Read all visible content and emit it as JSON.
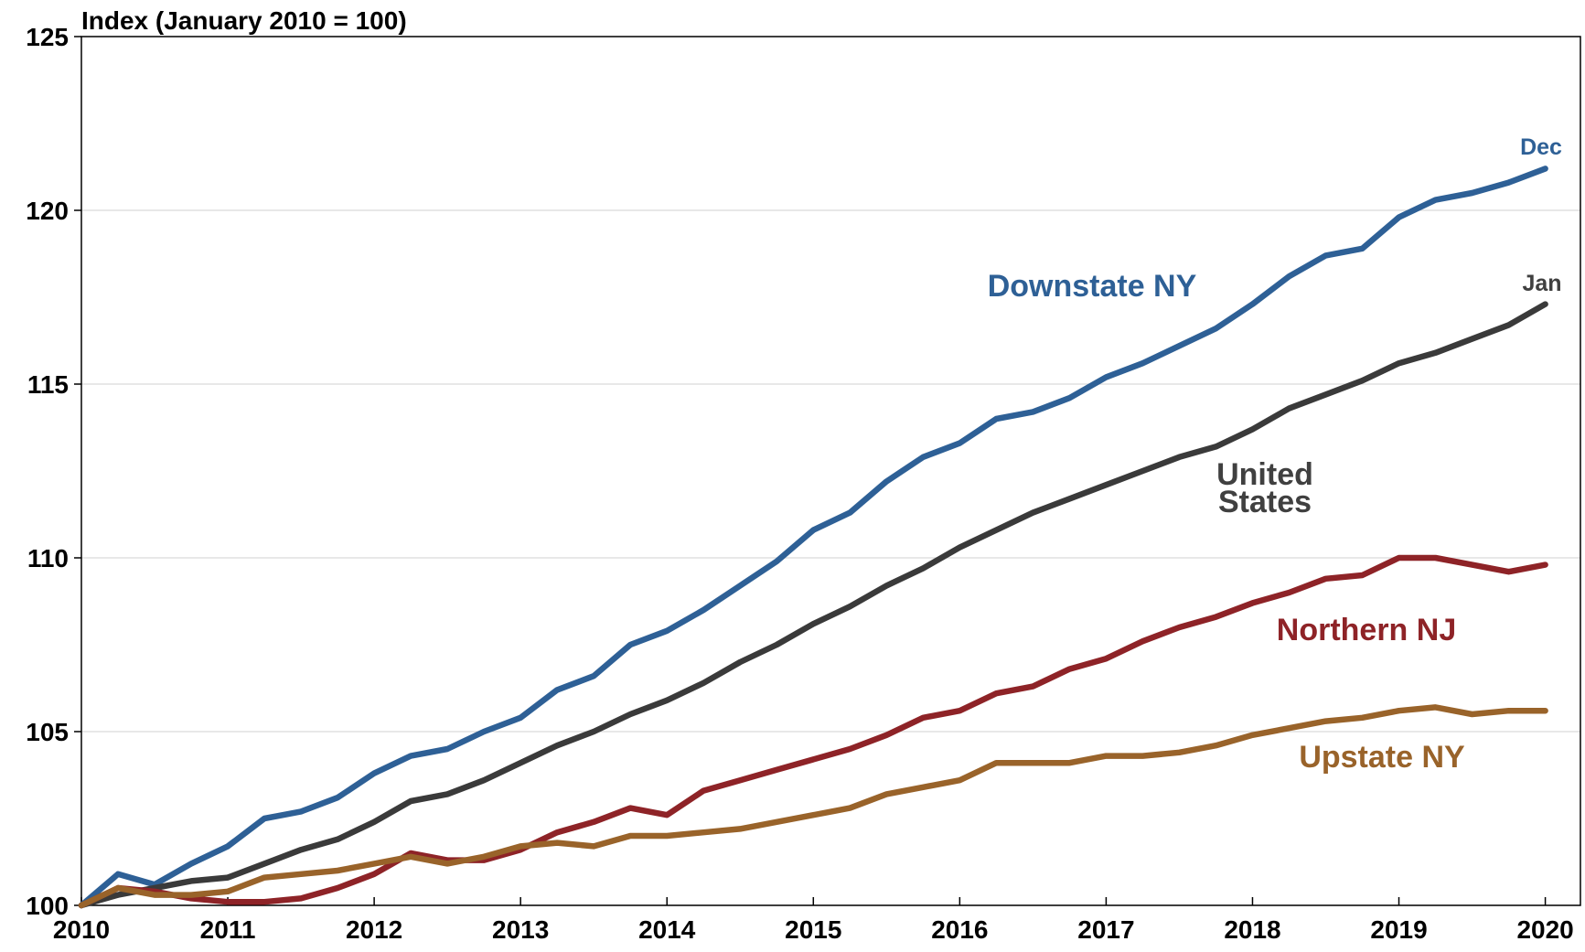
{
  "chart_data": {
    "type": "line",
    "title": "Index (January 2010 = 100)",
    "x": [
      2010,
      2010.25,
      2010.5,
      2010.75,
      2011,
      2011.25,
      2011.5,
      2011.75,
      2012,
      2012.25,
      2012.5,
      2012.75,
      2013,
      2013.25,
      2013.5,
      2013.75,
      2014,
      2014.25,
      2014.5,
      2014.75,
      2015,
      2015.25,
      2015.5,
      2015.75,
      2016,
      2016.25,
      2016.5,
      2016.75,
      2017,
      2017.25,
      2017.5,
      2017.75,
      2018,
      2018.25,
      2018.5,
      2018.75,
      2019,
      2019.25,
      2019.5,
      2019.75,
      2020
    ],
    "series": [
      {
        "name": "Downstate NY",
        "color": "#2e6096",
        "values": [
          100,
          100.9,
          100.6,
          101.2,
          101.7,
          102.5,
          102.7,
          103.1,
          103.8,
          104.3,
          104.5,
          105.0,
          105.4,
          106.2,
          106.6,
          107.5,
          107.9,
          108.5,
          109.2,
          109.9,
          110.8,
          111.3,
          112.2,
          112.9,
          113.3,
          114.0,
          114.2,
          114.6,
          115.2,
          115.6,
          116.1,
          116.6,
          117.3,
          118.1,
          118.7,
          118.9,
          119.8,
          120.3,
          120.5,
          120.8,
          121.2
        ]
      },
      {
        "color": "#3a3a3a",
        "values": [
          100,
          100.3,
          100.5,
          100.7,
          100.8,
          101.2,
          101.6,
          101.9,
          102.4,
          103.0,
          103.2,
          103.6,
          104.1,
          104.6,
          105.0,
          105.5,
          105.9,
          106.4,
          107.0,
          107.5,
          108.1,
          108.6,
          109.2,
          109.7,
          110.3,
          110.8,
          111.3,
          111.7,
          112.1,
          112.5,
          112.9,
          113.2,
          113.7,
          114.3,
          114.7,
          115.1,
          115.6,
          115.9,
          116.3,
          116.7,
          117.3
        ]
      },
      {
        "name": "Northern NJ",
        "color": "#8e2327",
        "values": [
          100,
          100.5,
          100.4,
          100.2,
          100.1,
          100.1,
          100.2,
          100.5,
          100.9,
          101.5,
          101.3,
          101.3,
          101.6,
          102.1,
          102.4,
          102.8,
          102.6,
          103.3,
          103.6,
          103.9,
          104.2,
          104.5,
          104.9,
          105.4,
          105.6,
          106.1,
          106.3,
          106.8,
          107.1,
          107.6,
          108.0,
          108.3,
          108.7,
          109.0,
          109.4,
          109.5,
          110.0,
          110.0,
          109.8,
          109.6,
          109.8
        ]
      },
      {
        "name": "Upstate NY",
        "color": "#99632a",
        "values": [
          100,
          100.5,
          100.3,
          100.3,
          100.4,
          100.8,
          100.9,
          101.0,
          101.2,
          101.4,
          101.2,
          101.4,
          101.7,
          101.8,
          101.7,
          102.0,
          102.0,
          102.1,
          102.2,
          102.4,
          102.6,
          102.8,
          103.2,
          103.4,
          103.6,
          104.1,
          104.1,
          104.1,
          104.3,
          104.3,
          104.4,
          104.6,
          104.9,
          105.1,
          105.3,
          105.4,
          105.6,
          105.7,
          105.5,
          105.6,
          105.6
        ]
      }
    ],
    "annotations": [
      "United",
      "States",
      "Dec",
      "Jan"
    ],
    "xlim": [
      2010,
      2020.24
    ],
    "xticks": [
      2010,
      2011,
      2012,
      2013,
      2014,
      2015,
      2016,
      2017,
      2018,
      2019,
      2020
    ],
    "ylim": [
      100,
      125
    ],
    "yticks": [
      100,
      105,
      110,
      115,
      120,
      125
    ],
    "grid": true
  }
}
